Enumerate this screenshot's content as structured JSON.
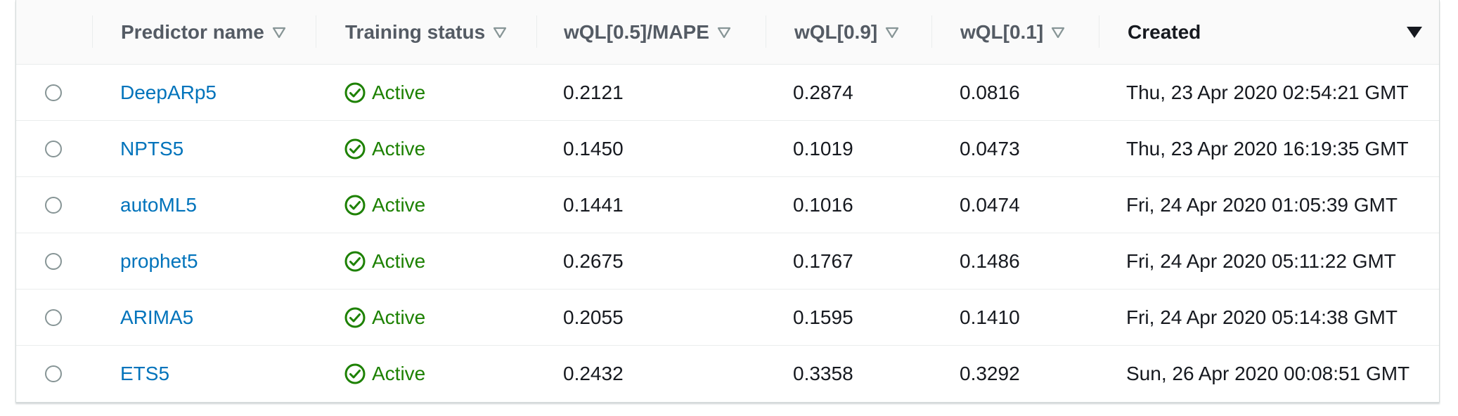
{
  "columns": [
    {
      "label": "Predictor name",
      "sort_icon": "sort-triangle-outline-icon"
    },
    {
      "label": "Training status",
      "sort_icon": "sort-triangle-outline-icon"
    },
    {
      "label": "wQL[0.5]/MAPE",
      "sort_icon": "sort-triangle-outline-icon"
    },
    {
      "label": "wQL[0.9]",
      "sort_icon": "sort-triangle-outline-icon"
    },
    {
      "label": "wQL[0.1]",
      "sort_icon": "sort-triangle-outline-icon"
    },
    {
      "label": "Created",
      "sort_icon": "sort-descending-filled-icon"
    }
  ],
  "status_icon": "check-circle-icon",
  "colors": {
    "link": "#0073bb",
    "status_active": "#1d8102",
    "header_bg": "#fafafa"
  },
  "rows": [
    {
      "name": "DeepARp5",
      "status": "Active",
      "wql_05": "0.2121",
      "wql_09": "0.2874",
      "wql_01": "0.0816",
      "created": "Thu, 23 Apr 2020 02:54:21 GMT"
    },
    {
      "name": "NPTS5",
      "status": "Active",
      "wql_05": "0.1450",
      "wql_09": "0.1019",
      "wql_01": "0.0473",
      "created": "Thu, 23 Apr 2020 16:19:35 GMT"
    },
    {
      "name": "autoML5",
      "status": "Active",
      "wql_05": "0.1441",
      "wql_09": "0.1016",
      "wql_01": "0.0474",
      "created": "Fri, 24 Apr 2020 01:05:39 GMT"
    },
    {
      "name": "prophet5",
      "status": "Active",
      "wql_05": "0.2675",
      "wql_09": "0.1767",
      "wql_01": "0.1486",
      "created": "Fri, 24 Apr 2020 05:11:22 GMT"
    },
    {
      "name": "ARIMA5",
      "status": "Active",
      "wql_05": "0.2055",
      "wql_09": "0.1595",
      "wql_01": "0.1410",
      "created": "Fri, 24 Apr 2020 05:14:38 GMT"
    },
    {
      "name": "ETS5",
      "status": "Active",
      "wql_05": "0.2432",
      "wql_09": "0.3358",
      "wql_01": "0.3292",
      "created": "Sun, 26 Apr 2020 00:08:51 GMT"
    }
  ]
}
